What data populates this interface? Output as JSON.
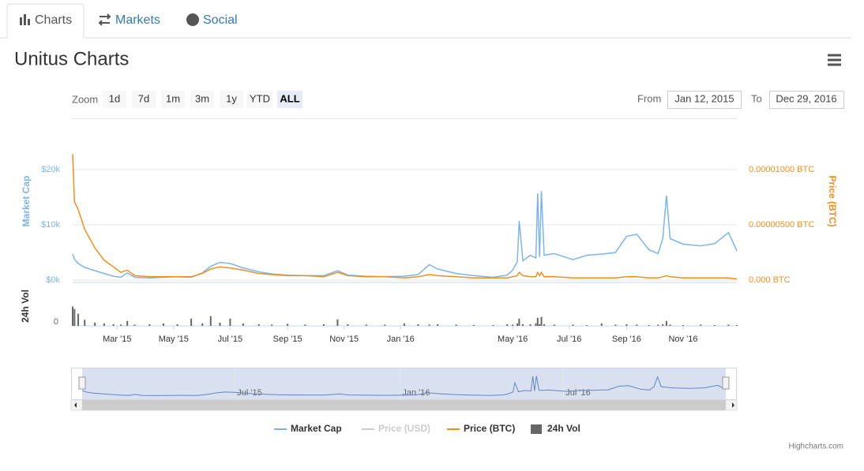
{
  "tabs": [
    "Charts",
    "Markets",
    "Social"
  ],
  "title": "Unitus Charts",
  "zoom_label": "Zoom",
  "zoom_buttons": [
    "1d",
    "7d",
    "1m",
    "3m",
    "1y",
    "YTD",
    "ALL"
  ],
  "active_zoom": 6,
  "from_label": "From",
  "from": "Jan 12, 2015",
  "to_label": "To",
  "to": "Dec 29, 2016",
  "credits": "Highcharts.com",
  "chart_data": {
    "type": "line",
    "y_label": "Market Cap",
    "y2_label": "Price (BTC)",
    "vol_label": "24h Vol",
    "x": [
      "2015-01-12",
      "2015-01-14",
      "2015-01-18",
      "2015-01-25",
      "2015-02-05",
      "2015-02-15",
      "2015-02-25",
      "2015-03-05",
      "2015-03-12",
      "2015-03-20",
      "2015-04-05",
      "2015-04-20",
      "2015-05-05",
      "2015-05-20",
      "2015-06-01",
      "2015-06-10",
      "2015-06-20",
      "2015-07-01",
      "2015-07-15",
      "2015-08-01",
      "2015-08-15",
      "2015-09-01",
      "2015-09-20",
      "2015-10-10",
      "2015-10-25",
      "2015-11-05",
      "2015-11-25",
      "2015-12-15",
      "2016-01-05",
      "2016-01-20",
      "2016-02-01",
      "2016-02-10",
      "2016-03-01",
      "2016-03-20",
      "2016-04-10",
      "2016-04-25",
      "2016-05-01",
      "2016-05-06",
      "2016-05-08",
      "2016-05-12",
      "2016-05-20",
      "2016-05-26",
      "2016-05-28",
      "2016-05-30",
      "2016-06-01",
      "2016-06-04",
      "2016-06-15",
      "2016-07-05",
      "2016-07-20",
      "2016-08-05",
      "2016-08-20",
      "2016-09-01",
      "2016-09-12",
      "2016-09-25",
      "2016-10-05",
      "2016-10-10",
      "2016-10-14",
      "2016-10-18",
      "2016-11-01",
      "2016-11-20",
      "2016-12-05",
      "2016-12-20",
      "2016-12-29"
    ],
    "xlim": [
      "2015-01-12",
      "2016-12-29"
    ],
    "xticks": [
      {
        "value": "2015-03-01",
        "label": "Mar '15"
      },
      {
        "value": "2015-05-01",
        "label": "May '15"
      },
      {
        "value": "2015-07-01",
        "label": "Jul '15"
      },
      {
        "value": "2015-09-01",
        "label": "Sep '15"
      },
      {
        "value": "2015-11-01",
        "label": "Nov '15"
      },
      {
        "value": "2016-01-01",
        "label": "Jan '16"
      },
      {
        "value": "2016-05-01",
        "label": "May '16"
      },
      {
        "value": "2016-07-01",
        "label": "Jul '16"
      },
      {
        "value": "2016-09-01",
        "label": "Sep '16"
      },
      {
        "value": "2016-11-01",
        "label": "Nov '16"
      }
    ],
    "navigator_xticks": [
      {
        "value": "2015-07-01",
        "label": "Jul '15"
      },
      {
        "value": "2016-01-01",
        "label": "Jan '16"
      },
      {
        "value": "2016-07-01",
        "label": "Jul '16"
      }
    ],
    "ylim": [
      0,
      24000
    ],
    "yticks": [
      {
        "value": 0,
        "label": "$0k"
      },
      {
        "value": 10000,
        "label": "$10k"
      },
      {
        "value": 20000,
        "label": "$20k"
      }
    ],
    "y2lim": [
      0,
      1.2e-05
    ],
    "y2ticks": [
      {
        "value": 0,
        "label": "0.000 BTC"
      },
      {
        "value": 5e-06,
        "label": "0.00000500 BTC"
      },
      {
        "value": 1e-05,
        "label": "0.00001000 BTC"
      }
    ],
    "vol_ylim": [
      0,
      1000
    ],
    "vol_yticks": [
      0
    ],
    "grid": true,
    "legend": "bottom",
    "series": [
      {
        "name": "Market Cap",
        "color": "#7cb5ec",
        "values": [
          4700,
          3800,
          3000,
          2300,
          1700,
          1200,
          700,
          500,
          1300,
          500,
          400,
          500,
          600,
          500,
          1300,
          2500,
          3200,
          3000,
          2200,
          1500,
          1100,
          900,
          800,
          800,
          1700,
          900,
          700,
          600,
          700,
          1000,
          2800,
          2000,
          1200,
          800,
          500,
          900,
          1800,
          3300,
          10700,
          3500,
          4500,
          4000,
          15700,
          4200,
          16100,
          4500,
          4800,
          3700,
          4500,
          4700,
          5000,
          7900,
          8300,
          5500,
          4800,
          7500,
          15300,
          7500,
          6500,
          6200,
          6600,
          8600,
          5300
        ]
      },
      {
        "name": "Price (USD)",
        "color": "#cccccc",
        "visible": false,
        "values": [
          null,
          null,
          null,
          null,
          null,
          null,
          null,
          null,
          null,
          null,
          null,
          null,
          null,
          null,
          null,
          null,
          null,
          null,
          null,
          null,
          null,
          null,
          null,
          null,
          null,
          null,
          null,
          null,
          null,
          null,
          null,
          null,
          null,
          null,
          null,
          null,
          null,
          null,
          null,
          null,
          null,
          null,
          null,
          null,
          null,
          null,
          null,
          null,
          null,
          null,
          null,
          null,
          null,
          null,
          null,
          null,
          null,
          null,
          null,
          null,
          null,
          null,
          null
        ]
      },
      {
        "name": "Price (BTC)",
        "color": "#f28f1c",
        "axis": "y2",
        "values": [
          1.14e-05,
          7.1e-06,
          6.4e-06,
          4.6e-06,
          2.9e-06,
          1.8e-06,
          1.2e-06,
          7e-07,
          9e-07,
          4e-07,
          3e-07,
          3e-07,
          3e-07,
          3e-07,
          6e-07,
          1e-06,
          1.2e-06,
          1.1e-06,
          9e-07,
          6e-07,
          5e-07,
          4e-07,
          4e-07,
          3e-07,
          7e-07,
          4e-07,
          3e-07,
          3e-07,
          2e-07,
          3e-07,
          5e-07,
          4e-07,
          3e-07,
          2e-07,
          2e-07,
          2e-07,
          3e-07,
          4e-07,
          7e-07,
          4e-07,
          3e-07,
          3e-07,
          7e-07,
          4e-07,
          7e-07,
          3e-07,
          3e-07,
          2e-07,
          2e-07,
          2e-07,
          2e-07,
          3e-07,
          3e-07,
          2e-07,
          2e-07,
          3e-07,
          4e-07,
          3e-07,
          2e-07,
          2e-07,
          2e-07,
          2e-07,
          1e-07
        ]
      },
      {
        "name": "24h Vol",
        "color": "#666666",
        "type": "column",
        "axis": "vol",
        "values": [
          480,
          420,
          300,
          150,
          80,
          60,
          40,
          30,
          120,
          30,
          40,
          60,
          40,
          180,
          60,
          240,
          80,
          180,
          60,
          40,
          30,
          50,
          30,
          40,
          160,
          40,
          30,
          30,
          60,
          40,
          30,
          40,
          30,
          20,
          20,
          40,
          30,
          60,
          180,
          40,
          40,
          60,
          200,
          40,
          220,
          40,
          30,
          30,
          20,
          60,
          30,
          40,
          30,
          20,
          30,
          40,
          120,
          30,
          20,
          30,
          20,
          30,
          20
        ]
      }
    ]
  }
}
